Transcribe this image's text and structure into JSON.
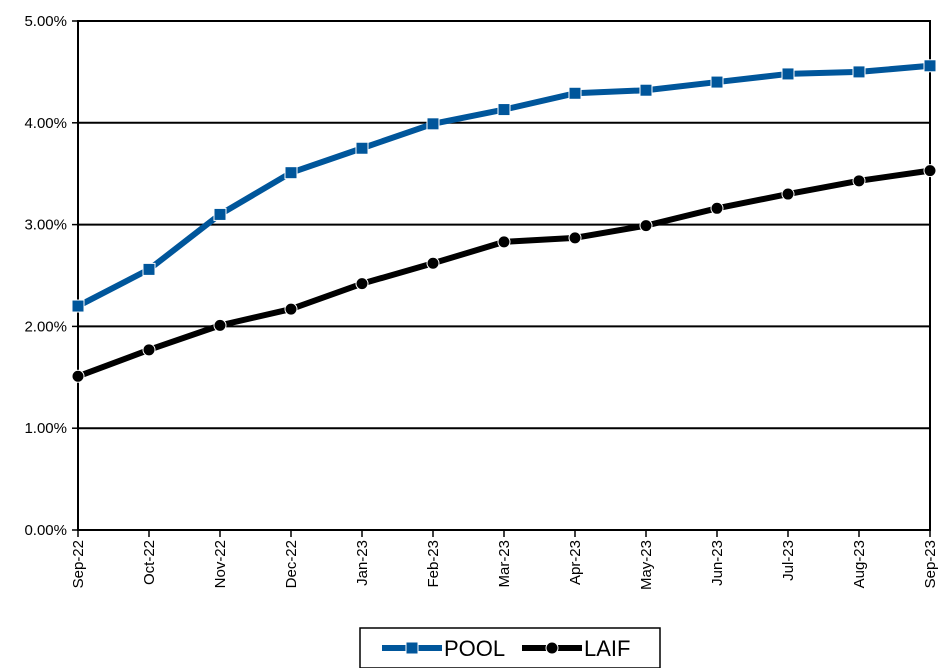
{
  "chart_data": {
    "type": "line",
    "title": "",
    "xlabel": "",
    "ylabel": "",
    "categories": [
      "Sep-22",
      "Oct-22",
      "Nov-22",
      "Dec-22",
      "Jan-23",
      "Feb-23",
      "Mar-23",
      "Apr-23",
      "May-23",
      "Jun-23",
      "Jul-23",
      "Aug-23",
      "Sep-23"
    ],
    "ylim": [
      0,
      5
    ],
    "yticks": [
      {
        "value": 0,
        "label": "0.00%"
      },
      {
        "value": 1,
        "label": "1.00%"
      },
      {
        "value": 2,
        "label": "2.00%"
      },
      {
        "value": 3,
        "label": "3.00%"
      },
      {
        "value": 4,
        "label": "4.00%"
      },
      {
        "value": 5,
        "label": "5.00%"
      }
    ],
    "grid": true,
    "legend": "bottom",
    "series": [
      {
        "name": "POOL",
        "color": "#00569b",
        "marker": "square",
        "values": [
          2.2,
          2.56,
          3.1,
          3.51,
          3.75,
          3.99,
          4.13,
          4.29,
          4.32,
          4.4,
          4.48,
          4.5,
          4.56
        ]
      },
      {
        "name": "LAIF",
        "color": "#000000",
        "marker": "circle",
        "values": [
          1.51,
          1.77,
          2.01,
          2.17,
          2.42,
          2.62,
          2.83,
          2.87,
          2.99,
          3.16,
          3.3,
          3.43,
          3.53
        ]
      }
    ]
  }
}
